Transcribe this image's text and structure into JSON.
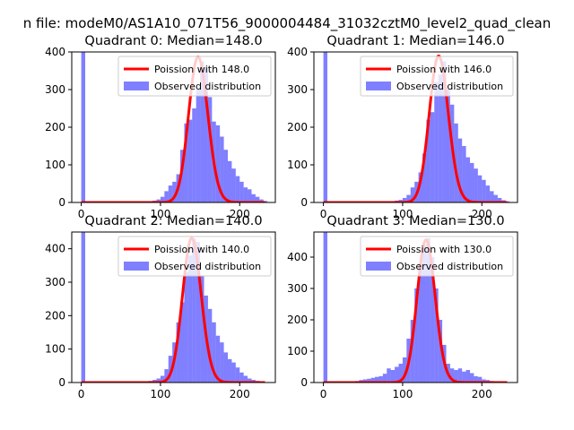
{
  "figure": {
    "suptitle": "n file: modeM0/AS1A10_071T56_9000004484_31032cztM0_level2_quad_clean"
  },
  "colors": {
    "bars": "#0000ff",
    "bars_opacity": 0.5,
    "poisson": "#ff0000",
    "axis": "#000000",
    "legend_border": "#cccccc"
  },
  "chart_data": [
    {
      "type": "bar",
      "title": "Quadrant 0: Median=148.0",
      "median": 148.0,
      "xlim": [
        -12,
        245
      ],
      "ylim": [
        0,
        400
      ],
      "xticks": [
        0,
        100,
        200
      ],
      "yticks": [
        0,
        100,
        200,
        300,
        400
      ],
      "legend": [
        "Poission with 148.0",
        "Observed distribution"
      ],
      "bin_width": 5,
      "bins": [
        {
          "x": 0,
          "v": 400
        },
        {
          "x": 85,
          "v": 3
        },
        {
          "x": 90,
          "v": 5
        },
        {
          "x": 95,
          "v": 8
        },
        {
          "x": 100,
          "v": 15
        },
        {
          "x": 105,
          "v": 30
        },
        {
          "x": 110,
          "v": 45
        },
        {
          "x": 115,
          "v": 55
        },
        {
          "x": 120,
          "v": 75
        },
        {
          "x": 125,
          "v": 140
        },
        {
          "x": 130,
          "v": 210
        },
        {
          "x": 135,
          "v": 220
        },
        {
          "x": 140,
          "v": 250
        },
        {
          "x": 145,
          "v": 300
        },
        {
          "x": 150,
          "v": 375
        },
        {
          "x": 155,
          "v": 360
        },
        {
          "x": 160,
          "v": 280
        },
        {
          "x": 165,
          "v": 215
        },
        {
          "x": 170,
          "v": 205
        },
        {
          "x": 175,
          "v": 175
        },
        {
          "x": 180,
          "v": 140
        },
        {
          "x": 185,
          "v": 110
        },
        {
          "x": 190,
          "v": 90
        },
        {
          "x": 195,
          "v": 70
        },
        {
          "x": 200,
          "v": 55
        },
        {
          "x": 205,
          "v": 40
        },
        {
          "x": 210,
          "v": 35
        },
        {
          "x": 215,
          "v": 22
        },
        {
          "x": 220,
          "v": 15
        },
        {
          "x": 225,
          "v": 8
        },
        {
          "x": 230,
          "v": 4
        }
      ],
      "poisson": {
        "x_start": 0,
        "x_end": 232,
        "mean": 148.0,
        "scale": 11800
      }
    },
    {
      "type": "bar",
      "title": "Quadrant 1: Median=146.0",
      "median": 146.0,
      "xlim": [
        -12,
        245
      ],
      "ylim": [
        0,
        400
      ],
      "xticks": [
        0,
        100,
        200
      ],
      "yticks": [
        0,
        100,
        200,
        300,
        400
      ],
      "legend": [
        "Poission with 146.0",
        "Observed distribution"
      ],
      "bin_width": 5,
      "bins": [
        {
          "x": 0,
          "v": 400
        },
        {
          "x": 85,
          "v": 3
        },
        {
          "x": 90,
          "v": 5
        },
        {
          "x": 95,
          "v": 7
        },
        {
          "x": 100,
          "v": 12
        },
        {
          "x": 105,
          "v": 20
        },
        {
          "x": 110,
          "v": 40
        },
        {
          "x": 115,
          "v": 55
        },
        {
          "x": 120,
          "v": 80
        },
        {
          "x": 125,
          "v": 130
        },
        {
          "x": 130,
          "v": 220
        },
        {
          "x": 135,
          "v": 240
        },
        {
          "x": 140,
          "v": 320
        },
        {
          "x": 145,
          "v": 340
        },
        {
          "x": 150,
          "v": 375
        },
        {
          "x": 155,
          "v": 300
        },
        {
          "x": 160,
          "v": 260
        },
        {
          "x": 165,
          "v": 210
        },
        {
          "x": 170,
          "v": 170
        },
        {
          "x": 175,
          "v": 150
        },
        {
          "x": 180,
          "v": 120
        },
        {
          "x": 185,
          "v": 105
        },
        {
          "x": 190,
          "v": 90
        },
        {
          "x": 195,
          "v": 72
        },
        {
          "x": 200,
          "v": 60
        },
        {
          "x": 205,
          "v": 45
        },
        {
          "x": 210,
          "v": 30
        },
        {
          "x": 215,
          "v": 20
        },
        {
          "x": 220,
          "v": 12
        },
        {
          "x": 225,
          "v": 6
        },
        {
          "x": 230,
          "v": 3
        }
      ],
      "poisson": {
        "x_start": 0,
        "x_end": 232,
        "mean": 146.0,
        "scale": 11800
      }
    },
    {
      "type": "bar",
      "title": "Quadrant 2: Median=140.0",
      "median": 140.0,
      "xlim": [
        -12,
        245
      ],
      "ylim": [
        0,
        450
      ],
      "xticks": [
        0,
        100,
        200
      ],
      "yticks": [
        0,
        100,
        200,
        300,
        400
      ],
      "legend": [
        "Poission with 140.0",
        "Observed distribution"
      ],
      "bin_width": 5,
      "bins": [
        {
          "x": 0,
          "v": 450
        },
        {
          "x": 80,
          "v": 3
        },
        {
          "x": 85,
          "v": 5
        },
        {
          "x": 90,
          "v": 8
        },
        {
          "x": 95,
          "v": 12
        },
        {
          "x": 100,
          "v": 20
        },
        {
          "x": 105,
          "v": 40
        },
        {
          "x": 110,
          "v": 80
        },
        {
          "x": 115,
          "v": 120
        },
        {
          "x": 120,
          "v": 180
        },
        {
          "x": 125,
          "v": 240
        },
        {
          "x": 130,
          "v": 330
        },
        {
          "x": 135,
          "v": 380
        },
        {
          "x": 140,
          "v": 430
        },
        {
          "x": 145,
          "v": 420
        },
        {
          "x": 150,
          "v": 320
        },
        {
          "x": 155,
          "v": 260
        },
        {
          "x": 160,
          "v": 220
        },
        {
          "x": 165,
          "v": 180
        },
        {
          "x": 170,
          "v": 140
        },
        {
          "x": 175,
          "v": 120
        },
        {
          "x": 180,
          "v": 90
        },
        {
          "x": 185,
          "v": 70
        },
        {
          "x": 190,
          "v": 60
        },
        {
          "x": 195,
          "v": 45
        },
        {
          "x": 200,
          "v": 30
        },
        {
          "x": 205,
          "v": 20
        },
        {
          "x": 210,
          "v": 12
        },
        {
          "x": 215,
          "v": 8
        },
        {
          "x": 220,
          "v": 5
        },
        {
          "x": 225,
          "v": 3
        }
      ],
      "poisson": {
        "x_start": 0,
        "x_end": 232,
        "mean": 140.0,
        "scale": 12800
      }
    },
    {
      "type": "bar",
      "title": "Quadrant 3: Median=130.0",
      "median": 130.0,
      "xlim": [
        -12,
        245
      ],
      "ylim": [
        0,
        480
      ],
      "xticks": [
        0,
        100,
        200
      ],
      "yticks": [
        0,
        100,
        200,
        300,
        400
      ],
      "legend": [
        "Poission with 130.0",
        "Observed distribution"
      ],
      "bin_width": 5,
      "bins": [
        {
          "x": 0,
          "v": 480
        },
        {
          "x": 40,
          "v": 5
        },
        {
          "x": 45,
          "v": 8
        },
        {
          "x": 50,
          "v": 10
        },
        {
          "x": 55,
          "v": 12
        },
        {
          "x": 60,
          "v": 15
        },
        {
          "x": 65,
          "v": 18
        },
        {
          "x": 70,
          "v": 20
        },
        {
          "x": 75,
          "v": 28
        },
        {
          "x": 80,
          "v": 45
        },
        {
          "x": 85,
          "v": 40
        },
        {
          "x": 90,
          "v": 50
        },
        {
          "x": 95,
          "v": 60
        },
        {
          "x": 100,
          "v": 80
        },
        {
          "x": 105,
          "v": 140
        },
        {
          "x": 110,
          "v": 200
        },
        {
          "x": 115,
          "v": 300
        },
        {
          "x": 120,
          "v": 380
        },
        {
          "x": 125,
          "v": 440
        },
        {
          "x": 130,
          "v": 460
        },
        {
          "x": 135,
          "v": 400
        },
        {
          "x": 140,
          "v": 300
        },
        {
          "x": 145,
          "v": 200
        },
        {
          "x": 150,
          "v": 120
        },
        {
          "x": 155,
          "v": 60
        },
        {
          "x": 160,
          "v": 45
        },
        {
          "x": 165,
          "v": 40
        },
        {
          "x": 170,
          "v": 45
        },
        {
          "x": 175,
          "v": 35
        },
        {
          "x": 180,
          "v": 40
        },
        {
          "x": 185,
          "v": 30
        },
        {
          "x": 190,
          "v": 20
        },
        {
          "x": 195,
          "v": 18
        },
        {
          "x": 200,
          "v": 10
        },
        {
          "x": 205,
          "v": 8
        },
        {
          "x": 210,
          "v": 5
        },
        {
          "x": 215,
          "v": 3
        }
      ],
      "poisson": {
        "x_start": 0,
        "x_end": 232,
        "mean": 130.0,
        "scale": 13000
      }
    }
  ]
}
